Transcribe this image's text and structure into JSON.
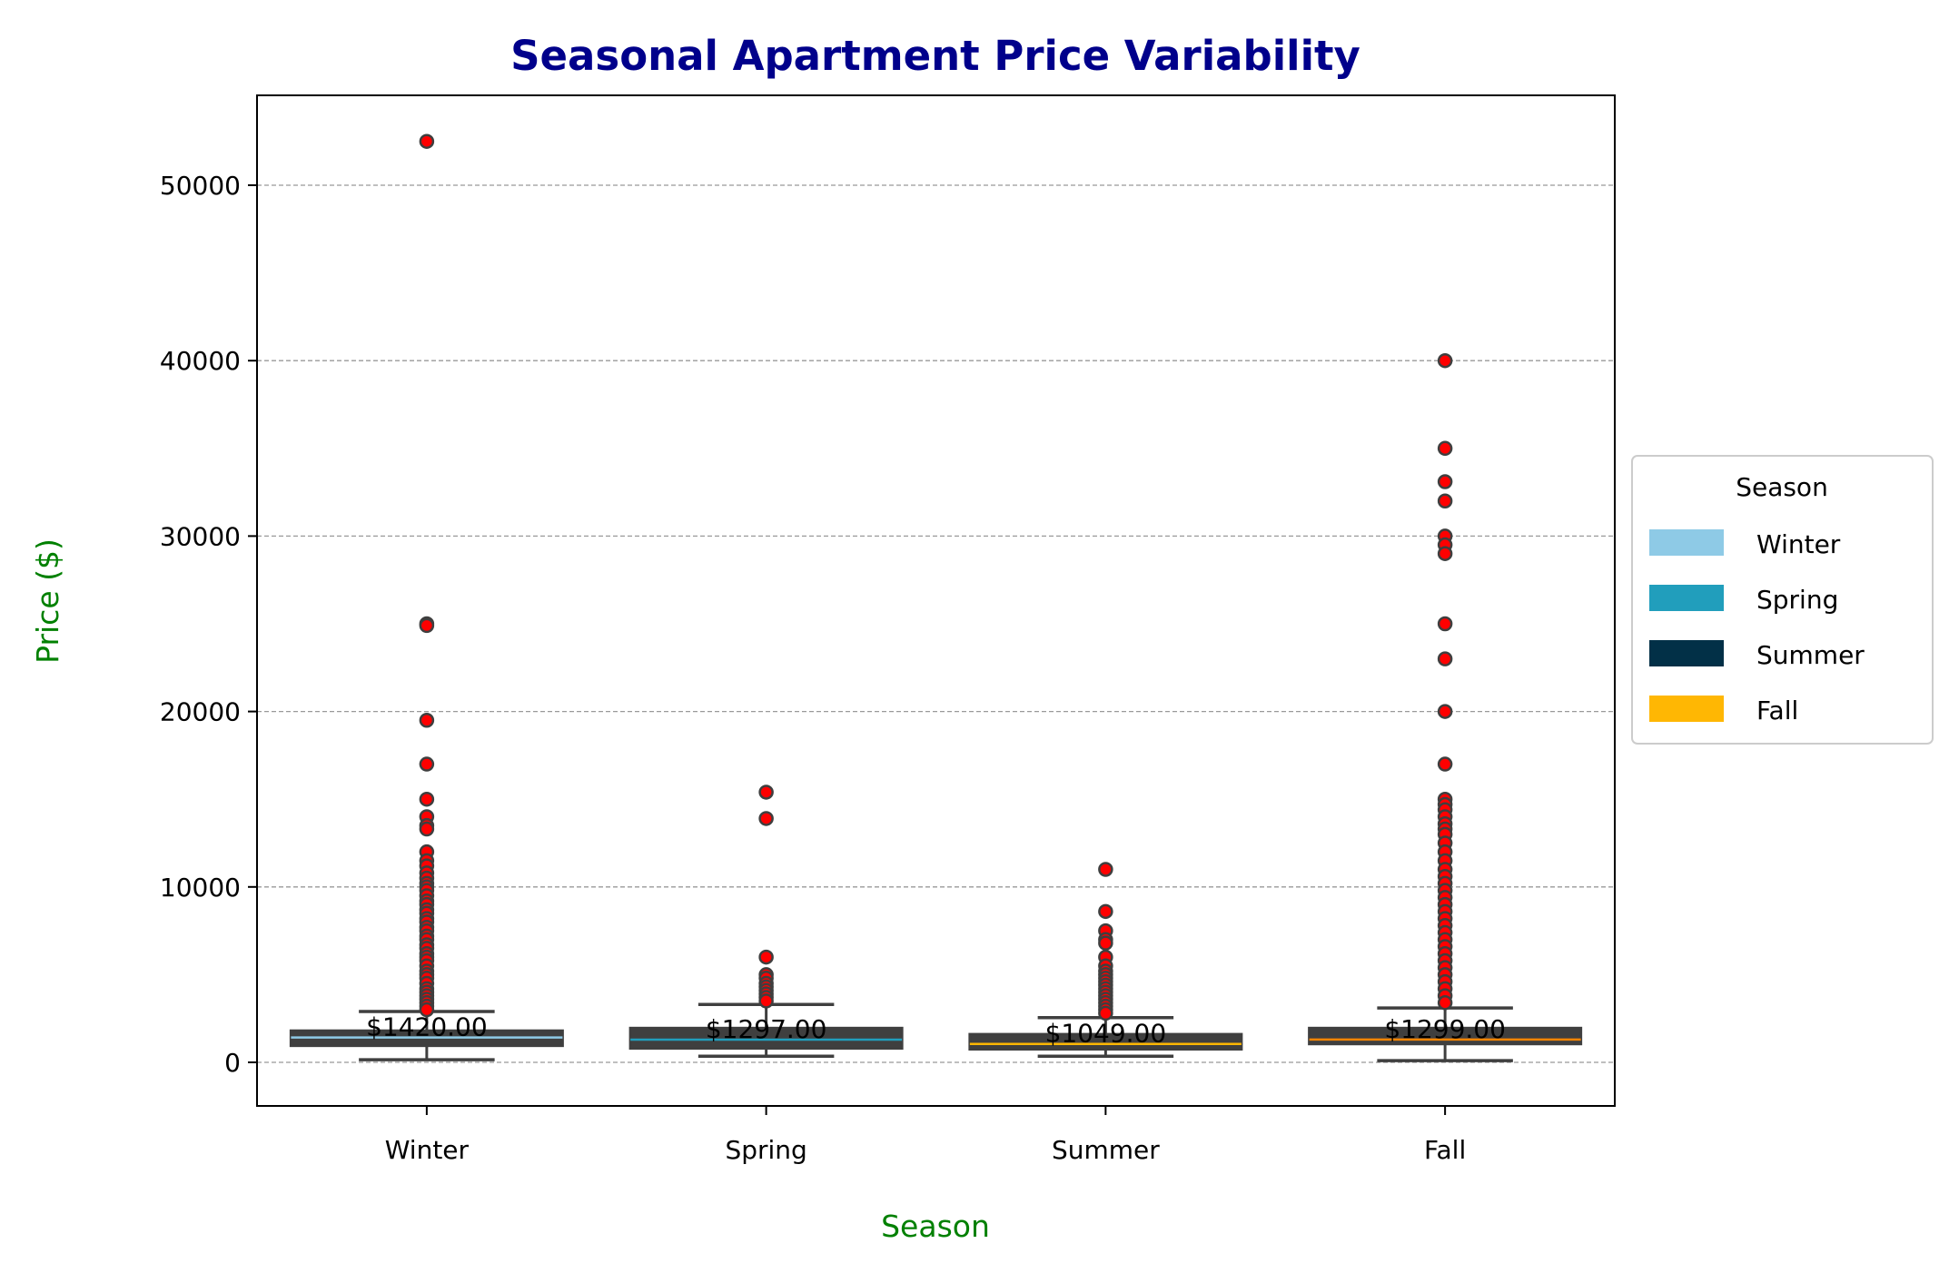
{
  "chart_data": {
    "type": "box",
    "title": "Seasonal Apartment Price Variability",
    "xlabel": "Season",
    "ylabel": "Price ($)",
    "ylim": [
      -2500,
      55300
    ],
    "yticks": [
      0,
      10000,
      20000,
      30000,
      40000,
      50000
    ],
    "grid": "y-dashed",
    "legend": {
      "title": "Season",
      "placement": "right",
      "entries": [
        {
          "name": "Winter",
          "color": "#8ecae6"
        },
        {
          "name": "Spring",
          "color": "#219ebc"
        },
        {
          "name": "Summer",
          "color": "#023047"
        },
        {
          "name": "Fall",
          "color": "#ffb703"
        }
      ]
    },
    "categories": [
      "Winter",
      "Spring",
      "Summer",
      "Fall"
    ],
    "boxes": [
      {
        "name": "Winter",
        "color": "#8ecae6",
        "whisker_low": 150,
        "q1": 950,
        "median": 1420,
        "q3": 1800,
        "whisker_high": 2900,
        "median_label": "$1420.00",
        "outliers": [
          52500,
          25000,
          24900,
          19500,
          17000,
          15000,
          14000,
          13500,
          13300,
          12000,
          11500,
          11200,
          10800,
          10500,
          10200,
          10000,
          9800,
          9500,
          9200,
          9000,
          8700,
          8500,
          8200,
          8000,
          7700,
          7500,
          7200,
          7000,
          6700,
          6500,
          6200,
          6000,
          5800,
          5500,
          5200,
          5000,
          4800,
          4500,
          4200,
          4000,
          3800,
          3600,
          3400,
          3200,
          3000
        ]
      },
      {
        "name": "Spring",
        "color": "#219ebc",
        "whisker_low": 350,
        "q1": 800,
        "median": 1297,
        "q3": 1950,
        "whisker_high": 3300,
        "median_label": "$1297.00",
        "outliers": [
          15400,
          13900,
          6000,
          5000,
          4800,
          4500,
          4300,
          4100,
          3900,
          3700,
          3500
        ]
      },
      {
        "name": "Summer",
        "color": "#ffb703",
        "whisker_low": 350,
        "q1": 750,
        "median": 1049,
        "q3": 1600,
        "whisker_high": 2550,
        "median_label": "$1049.00",
        "outliers": [
          11000,
          8600,
          7500,
          7000,
          6800,
          6000,
          5500,
          5200,
          5000,
          4800,
          4600,
          4400,
          4200,
          4000,
          3800,
          3600,
          3400,
          3200,
          3000,
          2800
        ]
      },
      {
        "name": "Fall",
        "color": "#fb8500",
        "whisker_low": 100,
        "q1": 1050,
        "median": 1299,
        "q3": 1950,
        "whisker_high": 3100,
        "median_label": "$1299.00",
        "outliers": [
          40000,
          35000,
          33100,
          32000,
          30000,
          29500,
          29000,
          25000,
          23000,
          20000,
          17000,
          15000,
          14700,
          14400,
          14000,
          13600,
          13300,
          13000,
          12500,
          12000,
          11500,
          11000,
          10600,
          10200,
          9800,
          9400,
          9000,
          8600,
          8200,
          7800,
          7400,
          7000,
          6600,
          6200,
          5800,
          5400,
          5000,
          4600,
          4200,
          3800,
          3400
        ]
      }
    ]
  }
}
